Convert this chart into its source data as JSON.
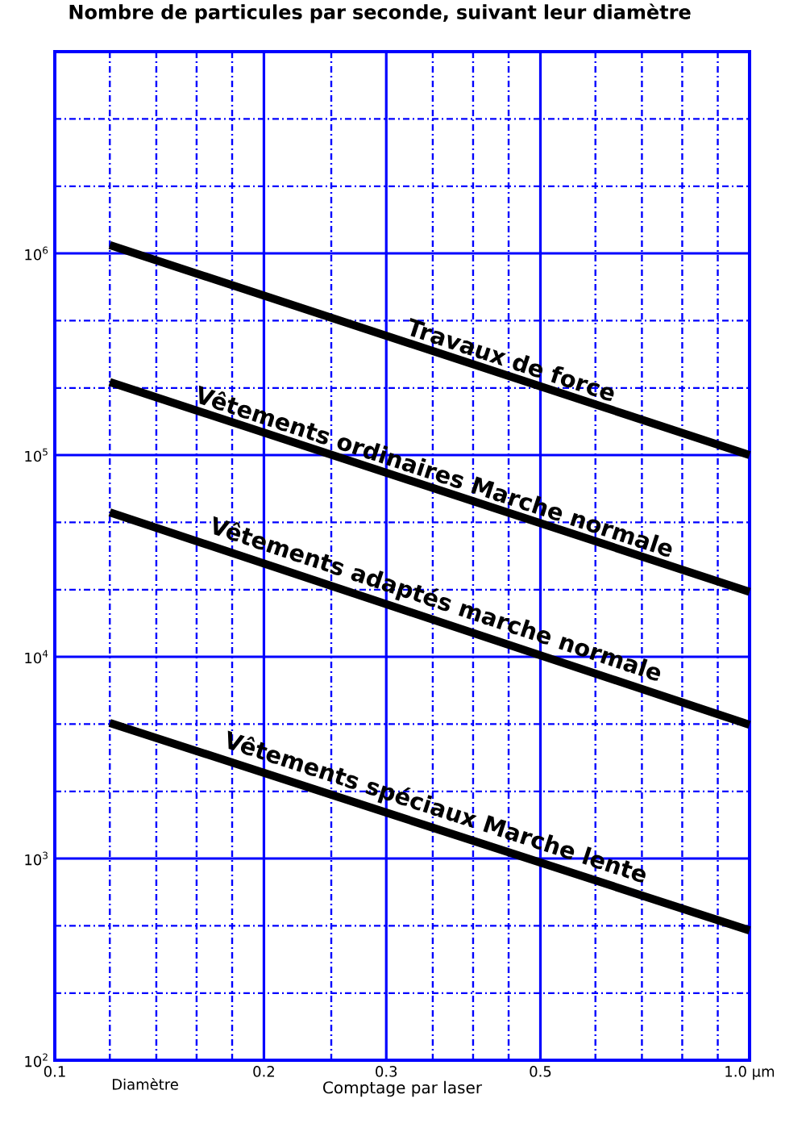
{
  "chart_data": {
    "type": "line",
    "title": "Nombre de particules par seconde, suivant leur diamètre",
    "xlabel": "Comptage par laser",
    "annotations": [
      "Diamètre"
    ],
    "log": "xy",
    "grid": true,
    "marker": "none",
    "line_style": "solid",
    "x": [
      0.12,
      1
    ],
    "xlim": [
      0.1,
      1
    ],
    "ylim": [
      100,
      10000000
    ],
    "xticks": [
      {
        "value": 0.1,
        "label": "0.1"
      },
      {
        "value": 0.12,
        "label": null
      },
      {
        "value": 0.14,
        "label": null
      },
      {
        "value": 0.16,
        "label": null
      },
      {
        "value": 0.18,
        "label": null
      },
      {
        "value": 0.2,
        "label": "0.2"
      },
      {
        "value": 0.25,
        "label": null
      },
      {
        "value": 0.3,
        "label": "0.3"
      },
      {
        "value": 0.35,
        "label": null
      },
      {
        "value": 0.4,
        "label": null
      },
      {
        "value": 0.45,
        "label": null
      },
      {
        "value": 0.5,
        "label": "0.5"
      },
      {
        "value": 0.6,
        "label": null
      },
      {
        "value": 0.7,
        "label": null
      },
      {
        "value": 0.8,
        "label": null
      },
      {
        "value": 0.9,
        "label": null
      },
      {
        "value": 1,
        "label": "1.0 µm"
      }
    ],
    "yticks": [
      {
        "value": 100,
        "label": "10$^{2}$"
      },
      {
        "value": 215,
        "label": null
      },
      {
        "value": 464,
        "label": null
      },
      {
        "value": 1000,
        "label": "10$^{3}$"
      },
      {
        "value": 2150,
        "label": null
      },
      {
        "value": 4640,
        "label": null
      },
      {
        "value": 10000,
        "label": "10$^{4}$"
      },
      {
        "value": 21500,
        "label": null
      },
      {
        "value": 46400,
        "label": null
      },
      {
        "value": 100000,
        "label": "10$^{5}$"
      },
      {
        "value": 215000,
        "label": null
      },
      {
        "value": 464000,
        "label": null
      },
      {
        "value": 1000000,
        "label": "10$^{6}$"
      },
      {
        "value": 2150000,
        "label": null
      },
      {
        "value": 4640000,
        "label": null
      }
    ],
    "series": [
      {
        "name": "Travaux de force",
        "color": "#000000",
        "values": [
          1100000,
          100000
        ]
      },
      {
        "name": "Vêtements ordinaires Marche normale",
        "color": "#000000",
        "values": [
          230000,
          21000
        ]
      },
      {
        "name": "Vêtements adaptés marche normale",
        "color": "#000000",
        "values": [
          52000,
          4600
        ]
      },
      {
        "name": "Vêtements spéciaux Marche lente",
        "color": "#000000",
        "values": [
          4700,
          440
        ]
      }
    ]
  }
}
